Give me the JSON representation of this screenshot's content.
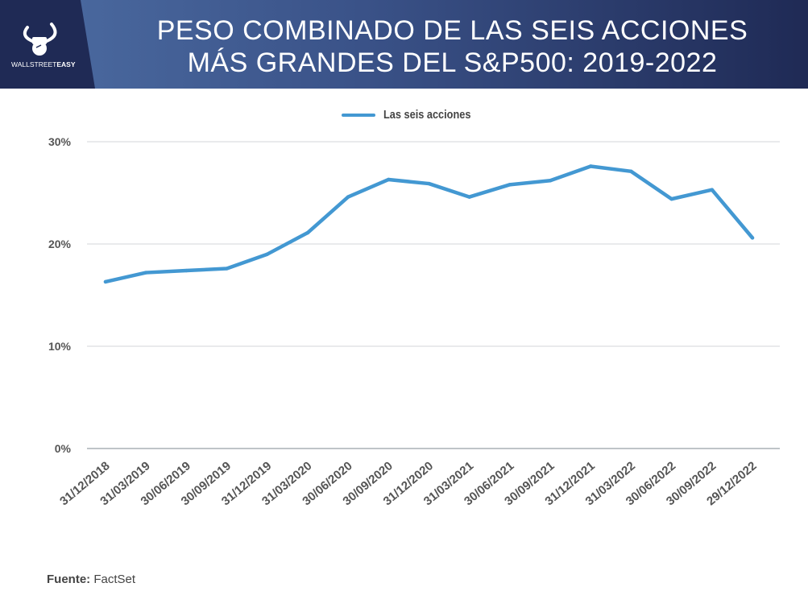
{
  "header": {
    "title_line1": "PESO COMBINADO DE LAS SEIS ACCIONES",
    "title_line2": "MÁS GRANDES DEL S&P500: 2019-2022",
    "logo_text_a": "WALLSTREET",
    "logo_text_b": "EASY",
    "logo_icon": "bull-fist-icon"
  },
  "colors": {
    "line": "#4398d2",
    "header_dark": "#1f2a55",
    "header_light": "#4d6da3",
    "grid": "#d3d6da"
  },
  "chart_data": {
    "type": "line",
    "title": "PESO COMBINADO DE LAS SEIS ACCIONES MÁS GRANDES DEL S&P500: 2019-2022",
    "xlabel": "",
    "ylabel": "",
    "ylim": [
      0,
      30
    ],
    "yticks": [
      0,
      10,
      20,
      30
    ],
    "ytick_labels": [
      "0%",
      "10%",
      "20%",
      "30%"
    ],
    "grid": true,
    "legend": "top-center",
    "categories": [
      "31/12/2018",
      "31/03/2019",
      "30/06/2019",
      "30/09/2019",
      "31/12/2019",
      "31/03/2020",
      "30/06/2020",
      "30/09/2020",
      "31/12/2020",
      "31/03/2021",
      "30/06/2021",
      "30/09/2021",
      "31/12/2021",
      "31/03/2022",
      "30/06/2022",
      "30/09/2022",
      "29/12/2022"
    ],
    "series": [
      {
        "name": "Las seis acciones",
        "values": [
          16.3,
          17.2,
          17.4,
          17.6,
          19.0,
          21.1,
          24.6,
          26.3,
          25.9,
          24.6,
          25.8,
          26.2,
          27.6,
          27.1,
          24.4,
          25.3,
          20.6
        ]
      }
    ]
  },
  "source": {
    "label": "Fuente:",
    "value": "FactSet"
  }
}
